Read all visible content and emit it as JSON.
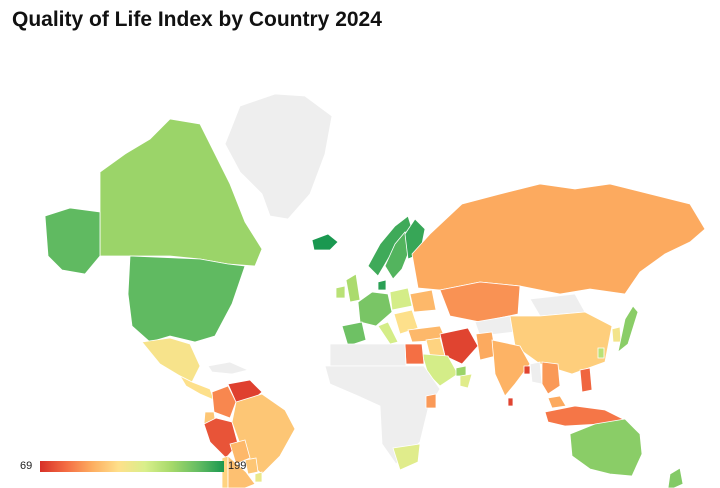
{
  "title": "Quality of Life Index by Country 2024",
  "legend": {
    "min_label": "69",
    "max_label": "199",
    "min": 69,
    "max": 199,
    "colors": [
      "#d73027",
      "#f46d43",
      "#fdae61",
      "#fee08b",
      "#d9ef8b",
      "#a6d96a",
      "#66bd63",
      "#1a9850"
    ]
  },
  "no_data_color": "#eeeeee",
  "border_color": "#ffffff",
  "map_data": [
    {
      "region": "greenland",
      "value": null
    },
    {
      "region": "canada",
      "value": 165
    },
    {
      "region": "alaska",
      "value": 182
    },
    {
      "region": "usa",
      "value": 182
    },
    {
      "region": "mexico",
      "value": 128
    },
    {
      "region": "central-america",
      "value": 125
    },
    {
      "region": "caribbean",
      "value": null
    },
    {
      "region": "colombia",
      "value": 95
    },
    {
      "region": "venezuela",
      "value": 74
    },
    {
      "region": "ecuador",
      "value": 115
    },
    {
      "region": "peru",
      "value": 80
    },
    {
      "region": "brazil",
      "value": 115
    },
    {
      "region": "bolivia",
      "value": 110
    },
    {
      "region": "paraguay",
      "value": 115
    },
    {
      "region": "chile",
      "value": 120
    },
    {
      "region": "argentina",
      "value": 113
    },
    {
      "region": "uruguay",
      "value": 135
    },
    {
      "region": "iceland",
      "value": 199
    },
    {
      "region": "norway",
      "value": 190
    },
    {
      "region": "sweden",
      "value": 185
    },
    {
      "region": "finland",
      "value": 192
    },
    {
      "region": "denmark",
      "value": 195
    },
    {
      "region": "uk",
      "value": 160
    },
    {
      "region": "ireland",
      "value": 155
    },
    {
      "region": "western-europe",
      "value": 175
    },
    {
      "region": "iberia",
      "value": 178
    },
    {
      "region": "italy",
      "value": 145
    },
    {
      "region": "poland",
      "value": 145
    },
    {
      "region": "balkans",
      "value": 125
    },
    {
      "region": "turkey",
      "value": 110
    },
    {
      "region": "ukraine",
      "value": 110
    },
    {
      "region": "russia",
      "value": 105
    },
    {
      "region": "kazakhstan",
      "value": 98
    },
    {
      "region": "central-asia",
      "value": null
    },
    {
      "region": "mongolia",
      "value": null
    },
    {
      "region": "china",
      "value": 118
    },
    {
      "region": "korea",
      "value": 130
    },
    {
      "region": "japan",
      "value": 170
    },
    {
      "region": "iran",
      "value": 75
    },
    {
      "region": "iraq",
      "value": 120
    },
    {
      "region": "saudi-arabia",
      "value": 145
    },
    {
      "region": "uae",
      "value": 165
    },
    {
      "region": "oman",
      "value": 140
    },
    {
      "region": "pakistan",
      "value": 105
    },
    {
      "region": "india",
      "value": 108
    },
    {
      "region": "sri-lanka",
      "value": 75
    },
    {
      "region": "bangladesh",
      "value": 75
    },
    {
      "region": "myanmar",
      "value": null
    },
    {
      "region": "indochina",
      "value": 100
    },
    {
      "region": "malaysia",
      "value": 105
    },
    {
      "region": "philippines",
      "value": 85
    },
    {
      "region": "indonesia",
      "value": 90
    },
    {
      "region": "taiwan",
      "value": 155
    },
    {
      "region": "egypt",
      "value": 88
    },
    {
      "region": "north-africa",
      "value": null
    },
    {
      "region": "nigeria",
      "value": 70
    },
    {
      "region": "sub-saharan-africa",
      "value": null
    },
    {
      "region": "kenya",
      "value": 100
    },
    {
      "region": "south-africa",
      "value": 140
    },
    {
      "region": "australia",
      "value": 170
    },
    {
      "region": "new-zealand",
      "value": 172
    }
  ]
}
